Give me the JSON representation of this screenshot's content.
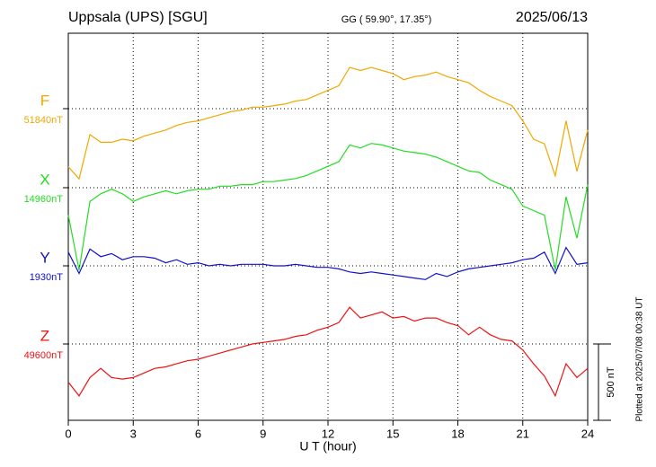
{
  "chart_data": {
    "type": "line",
    "title": "Uppsala (UPS)  [SGU]",
    "subtitle": "GG ( 59.90°,  17.35°)",
    "date": "2025/06/13",
    "xlabel": "U T (hour)",
    "note": "Plotted at 2025/07/08 00:38 UT",
    "scale_bar": {
      "value": 500,
      "label": "500 nT"
    },
    "xlim": [
      0,
      24
    ],
    "xticks": [
      0,
      3,
      6,
      9,
      12,
      15,
      18,
      21,
      24
    ],
    "grid": true,
    "x": [
      0,
      0.5,
      1,
      1.5,
      2,
      2.5,
      3,
      3.5,
      4,
      4.5,
      5,
      5.5,
      6,
      6.5,
      7,
      7.5,
      8,
      8.5,
      9,
      9.5,
      10,
      10.5,
      11,
      11.5,
      12,
      12.5,
      13,
      13.5,
      14,
      14.5,
      15,
      15.5,
      16,
      16.5,
      17,
      17.5,
      18,
      18.5,
      19,
      19.5,
      20,
      20.5,
      21,
      21.5,
      22,
      22.5,
      23,
      23.5,
      24
    ],
    "series": [
      {
        "name": "F",
        "color": "#f0a800",
        "baseline": {
          "value": 51840,
          "label": "51840nT"
        },
        "values": [
          51460,
          51380,
          51670,
          51620,
          51620,
          51640,
          51630,
          51660,
          51680,
          51700,
          51730,
          51750,
          51760,
          51780,
          51800,
          51820,
          51830,
          51850,
          51850,
          51860,
          51870,
          51890,
          51900,
          51930,
          51960,
          51990,
          52110,
          52090,
          52110,
          52090,
          52070,
          52030,
          52050,
          52060,
          52080,
          52050,
          52030,
          52010,
          51960,
          51920,
          51890,
          51860,
          51760,
          51640,
          51610,
          51400,
          51760,
          51430,
          51700
        ]
      },
      {
        "name": "X",
        "color": "#22dd22",
        "baseline": {
          "value": 14960,
          "label": "14960nT"
        },
        "values": [
          14780,
          14420,
          14870,
          14920,
          14950,
          14920,
          14870,
          14900,
          14920,
          14940,
          14920,
          14940,
          14950,
          14950,
          14970,
          14970,
          14980,
          14980,
          15000,
          15000,
          15010,
          15020,
          15040,
          15070,
          15100,
          15130,
          15240,
          15220,
          15250,
          15240,
          15220,
          15200,
          15190,
          15180,
          15160,
          15130,
          15100,
          15070,
          15060,
          15010,
          14980,
          14950,
          14840,
          14810,
          14780,
          14420,
          14900,
          14630,
          14980
        ]
      },
      {
        "name": "Y",
        "color": "#1010cc",
        "baseline": {
          "value": 1930,
          "label": "1930nT"
        },
        "values": [
          2020,
          1880,
          2040,
          1990,
          2010,
          1970,
          1990,
          1990,
          1980,
          1950,
          1970,
          1940,
          1950,
          1930,
          1940,
          1930,
          1940,
          1940,
          1940,
          1930,
          1930,
          1940,
          1930,
          1920,
          1920,
          1910,
          1890,
          1880,
          1890,
          1880,
          1870,
          1860,
          1850,
          1840,
          1880,
          1860,
          1890,
          1910,
          1920,
          1930,
          1940,
          1950,
          1970,
          1980,
          2020,
          1880,
          2050,
          1940,
          1950
        ]
      },
      {
        "name": "Z",
        "color": "#ee1111",
        "baseline": {
          "value": 49600,
          "label": "49600nT"
        },
        "values": [
          49350,
          49260,
          49380,
          49440,
          49380,
          49370,
          49380,
          49410,
          49440,
          49450,
          49470,
          49490,
          49500,
          49520,
          49540,
          49560,
          49580,
          49600,
          49610,
          49620,
          49630,
          49650,
          49660,
          49690,
          49710,
          49740,
          49840,
          49770,
          49790,
          49810,
          49770,
          49780,
          49750,
          49770,
          49770,
          49740,
          49720,
          49660,
          49710,
          49660,
          49630,
          49620,
          49560,
          49470,
          49390,
          49260,
          49470,
          49380,
          49440
        ]
      }
    ]
  }
}
